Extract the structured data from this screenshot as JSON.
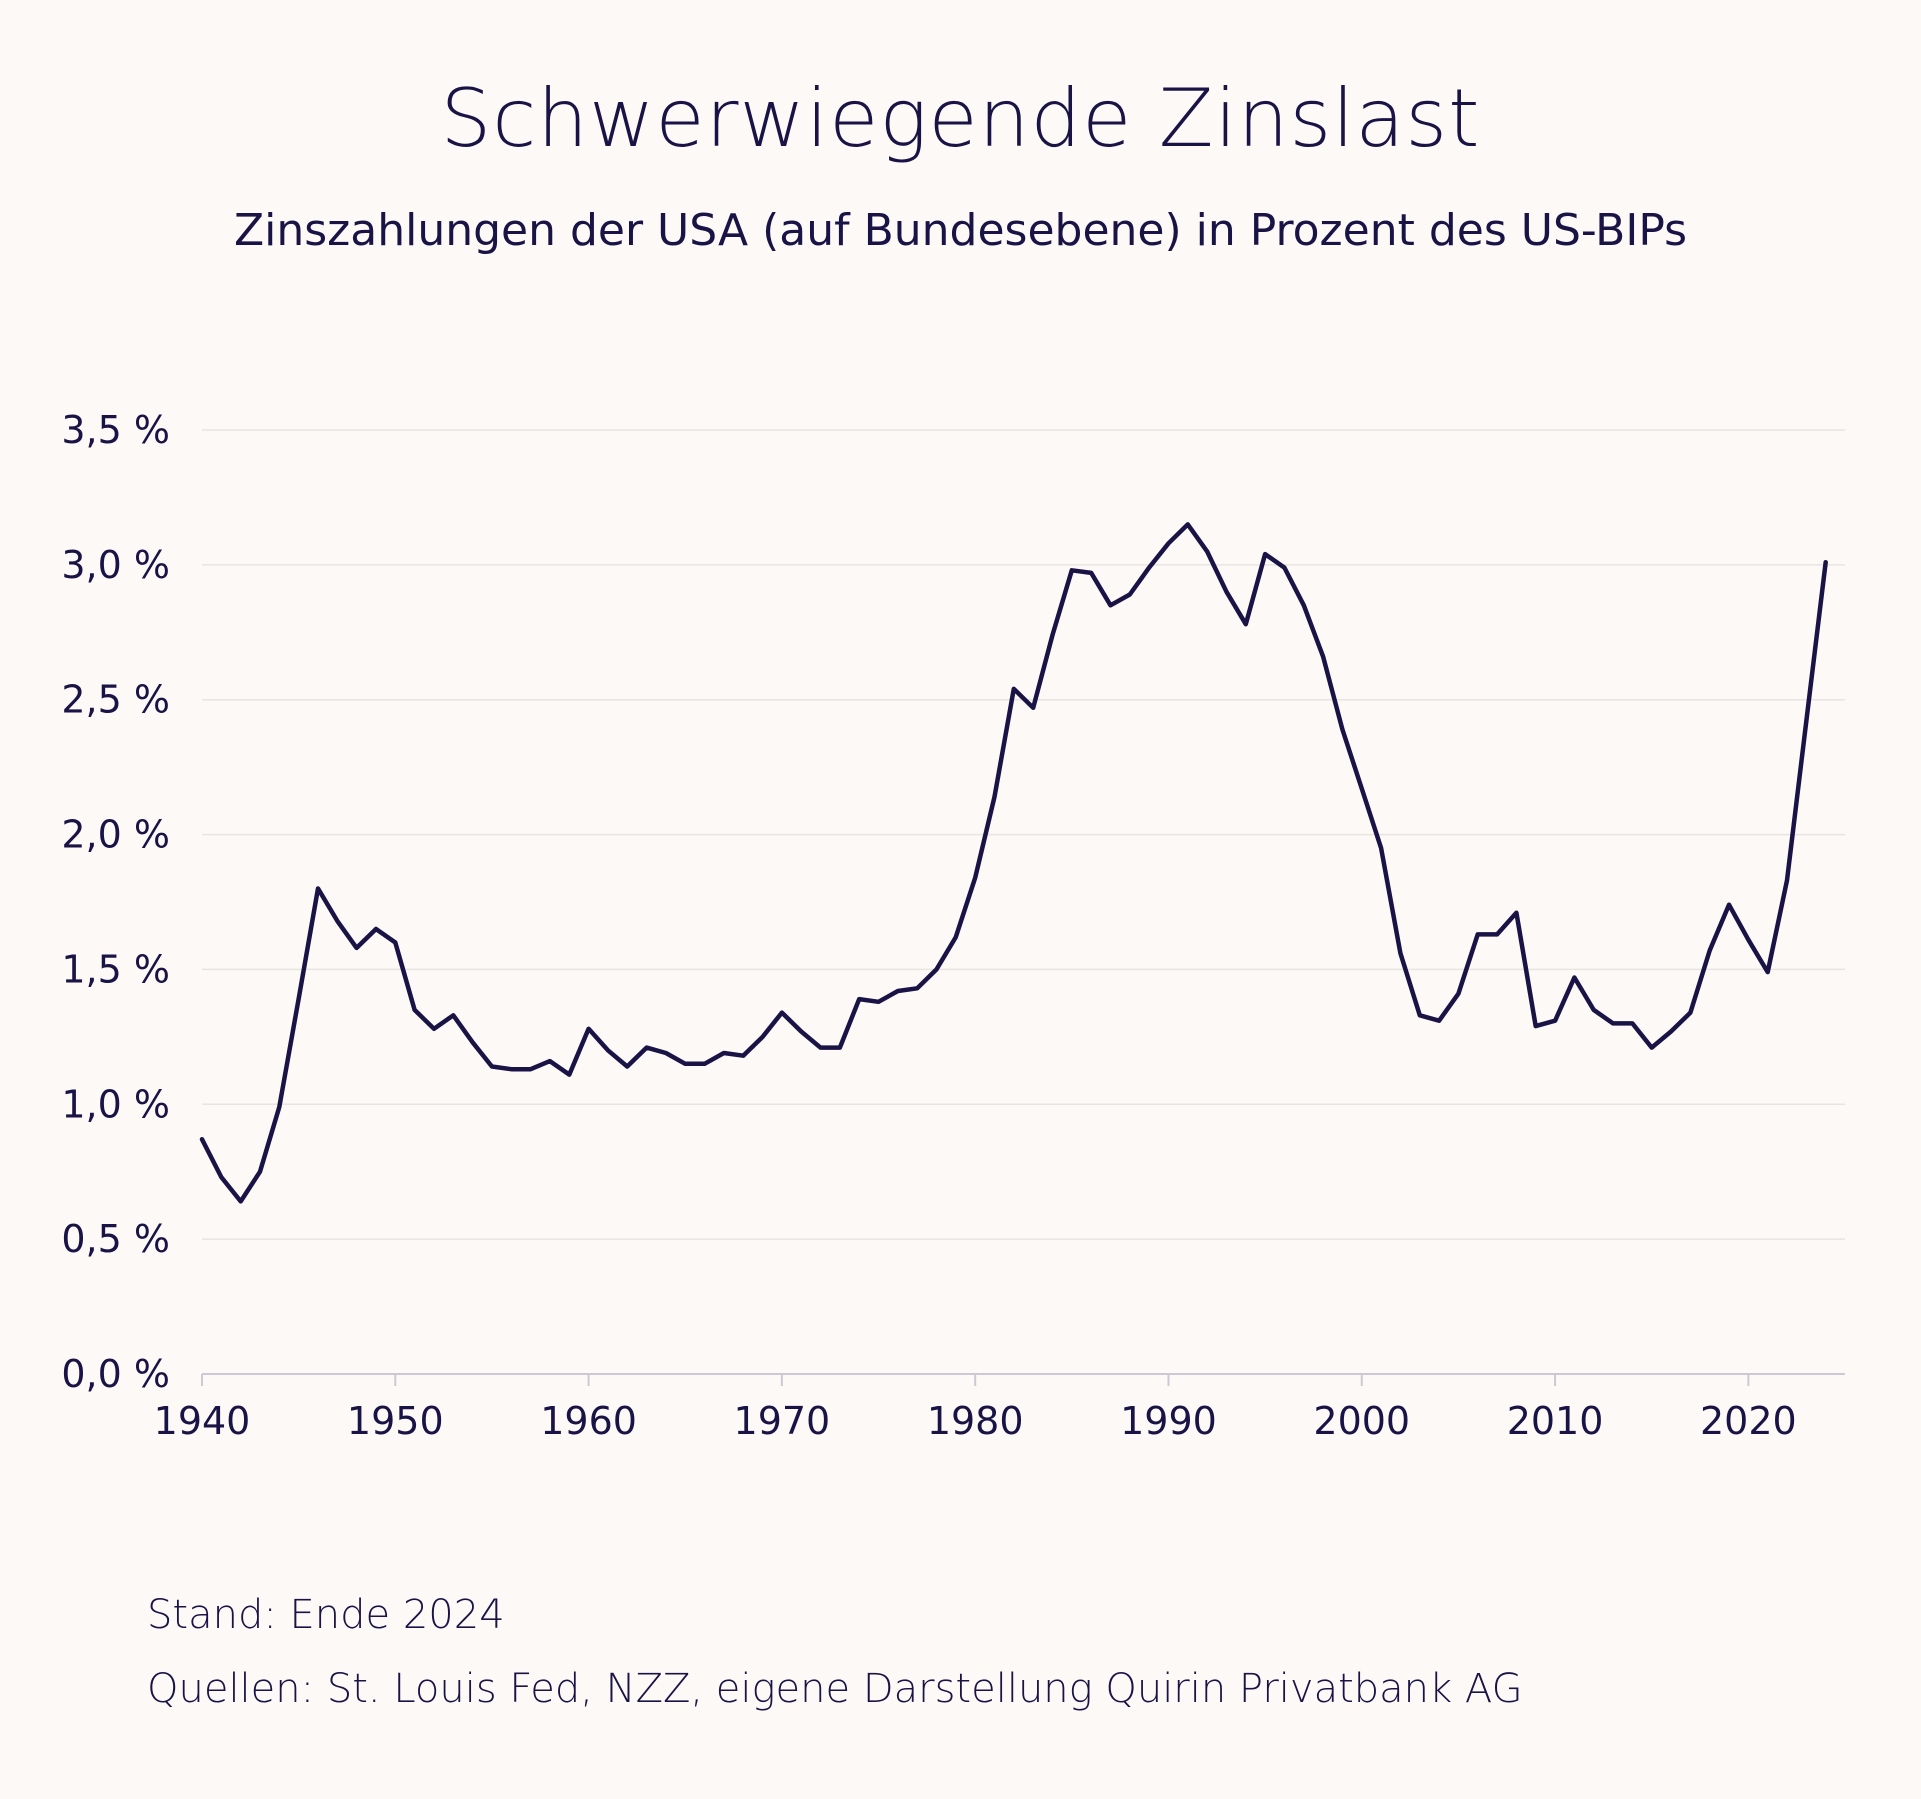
{
  "title": "Schwerwiegende Zinslast",
  "subtitle": "Zinszahlungen der USA (auf Bundesebene) in Prozent des US-BIPs",
  "footer": {
    "stand": "Stand: Ende 2024",
    "quellen": "Quellen: St. Louis Fed, NZZ, eigene Darstellung Quirin Privatbank AG"
  },
  "colors": {
    "line": "#1a1446",
    "background": "#fcf9f6",
    "grid": "#e7e4e1"
  },
  "chart_data": {
    "type": "line",
    "title": "Schwerwiegende Zinslast",
    "xlabel": "",
    "ylabel": "",
    "xlim": [
      1940,
      2025
    ],
    "ylim": [
      0,
      3.5
    ],
    "grid": true,
    "y_ticks": [
      0,
      0.5,
      1.0,
      1.5,
      2.0,
      2.5,
      3.0,
      3.5
    ],
    "y_tick_labels": [
      "0,0 %",
      "0,5 %",
      "1,0 %",
      "1,5 %",
      "2,0 %",
      "2,5 %",
      "3,0 %",
      "3,5 %"
    ],
    "x_ticks": [
      1940,
      1950,
      1960,
      1970,
      1980,
      1990,
      2000,
      2010,
      2020
    ],
    "x_tick_labels": [
      "1940",
      "1950",
      "1960",
      "1970",
      "1980",
      "1990",
      "2000",
      "2010",
      "2020"
    ],
    "series": [
      {
        "name": "Zinszahlungen in % des BIP",
        "x": [
          1940,
          1941,
          1942,
          1943,
          1944,
          1945,
          1946,
          1947,
          1948,
          1949,
          1950,
          1951,
          1952,
          1953,
          1954,
          1955,
          1956,
          1957,
          1958,
          1959,
          1960,
          1961,
          1962,
          1963,
          1964,
          1965,
          1966,
          1967,
          1968,
          1969,
          1970,
          1971,
          1972,
          1973,
          1974,
          1975,
          1976,
          1977,
          1978,
          1979,
          1980,
          1981,
          1982,
          1983,
          1984,
          1985,
          1986,
          1987,
          1988,
          1989,
          1990,
          1991,
          1992,
          1993,
          1994,
          1995,
          1996,
          1997,
          1998,
          1999,
          2000,
          2001,
          2002,
          2003,
          2004,
          2005,
          2006,
          2007,
          2008,
          2009,
          2010,
          2011,
          2012,
          2013,
          2014,
          2015,
          2016,
          2017,
          2018,
          2019,
          2020,
          2021,
          2022,
          2023,
          2024
        ],
        "values": [
          0.87,
          0.73,
          0.64,
          0.75,
          0.99,
          1.39,
          1.8,
          1.68,
          1.58,
          1.65,
          1.6,
          1.35,
          1.28,
          1.33,
          1.23,
          1.14,
          1.13,
          1.13,
          1.16,
          1.11,
          1.28,
          1.2,
          1.14,
          1.21,
          1.19,
          1.15,
          1.15,
          1.19,
          1.18,
          1.25,
          1.34,
          1.27,
          1.21,
          1.21,
          1.39,
          1.38,
          1.42,
          1.43,
          1.5,
          1.62,
          1.84,
          2.14,
          2.54,
          2.47,
          2.74,
          2.98,
          2.97,
          2.85,
          2.89,
          2.99,
          3.08,
          3.15,
          3.05,
          2.9,
          2.78,
          3.04,
          2.99,
          2.85,
          2.66,
          2.39,
          2.17,
          1.95,
          1.56,
          1.33,
          1.31,
          1.41,
          1.63,
          1.63,
          1.71,
          1.29,
          1.31,
          1.47,
          1.35,
          1.3,
          1.3,
          1.21,
          1.27,
          1.34,
          1.57,
          1.74,
          1.61,
          1.49,
          1.83,
          2.42,
          3.01
        ]
      }
    ]
  }
}
